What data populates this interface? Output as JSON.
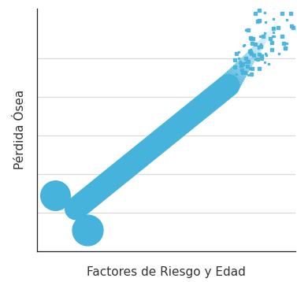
{
  "chart_data": {
    "type": "line",
    "x_label": "Factores de Riesgo y Edad",
    "y_label": "Pérdida Ósea",
    "x": [
      1.5,
      7.4,
      9.5
    ],
    "values": [
      1.1,
      4.3,
      6.1
    ],
    "color": "#45b3dc",
    "xlim": [
      0,
      10
    ],
    "ylim": [
      0,
      6.3
    ],
    "yticks": [
      1,
      2,
      3,
      4,
      5
    ],
    "grid": true,
    "tick_labels": false
  }
}
